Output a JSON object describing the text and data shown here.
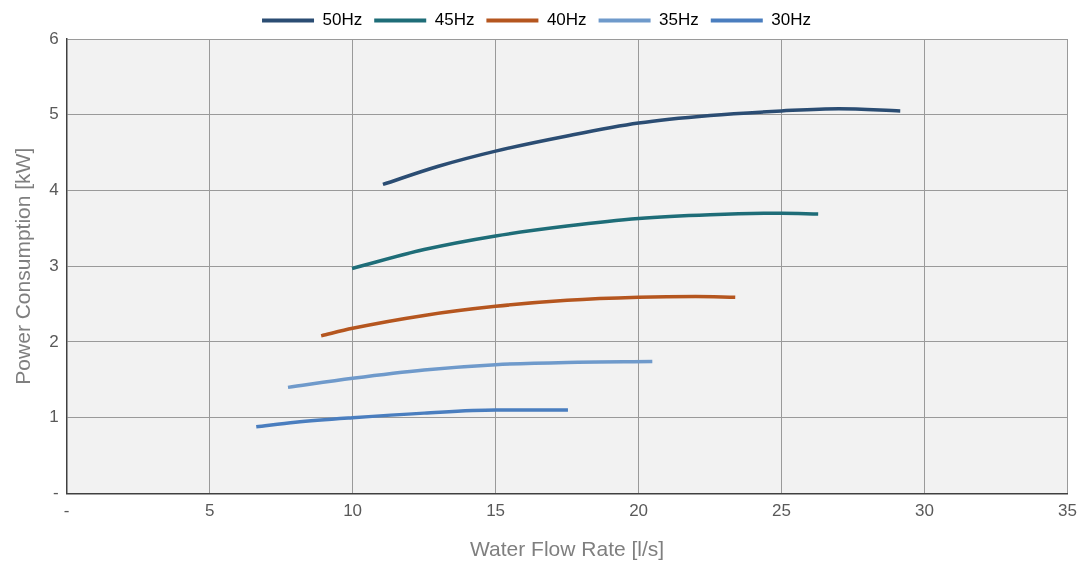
{
  "chart_data": {
    "type": "line",
    "xlabel": "Water Flow Rate [l/s]",
    "ylabel": "Power Consumption [kW]",
    "xlim": [
      0,
      35
    ],
    "ylim": [
      0,
      6
    ],
    "xticks": [
      {
        "value": 0,
        "label": "-"
      },
      5,
      10,
      15,
      20,
      25,
      30,
      35
    ],
    "yticks": [
      {
        "value": 0,
        "label": "-"
      },
      1,
      2,
      3,
      4,
      5,
      6
    ],
    "grid": true,
    "legend": "top",
    "marker": "none",
    "line_style": "solid",
    "series": [
      {
        "name": "50Hz",
        "color": "#2b4d73",
        "x": [
          11.06,
          13,
          15,
          17.5,
          20,
          22.5,
          25,
          27,
          29.15
        ],
        "values": [
          4.08,
          4.32,
          4.52,
          4.72,
          4.89,
          4.99,
          5.05,
          5.08,
          5.05
        ]
      },
      {
        "name": "45Hz",
        "color": "#1e6d78",
        "x": [
          9.98,
          12.5,
          15,
          17.5,
          20,
          22.5,
          25,
          26.28
        ],
        "values": [
          2.97,
          3.22,
          3.4,
          3.53,
          3.63,
          3.68,
          3.7,
          3.69
        ]
      },
      {
        "name": "40Hz",
        "color": "#b5561f",
        "x": [
          8.9,
          10,
          12.5,
          15,
          17.5,
          20,
          22,
          23.38
        ],
        "values": [
          2.08,
          2.18,
          2.35,
          2.47,
          2.55,
          2.59,
          2.6,
          2.59
        ]
      },
      {
        "name": "35Hz",
        "color": "#6f9acb",
        "x": [
          7.74,
          10,
          12.5,
          15,
          17.5,
          20.48
        ],
        "values": [
          1.4,
          1.52,
          1.63,
          1.7,
          1.73,
          1.74
        ]
      },
      {
        "name": "30Hz",
        "color": "#4a7ebf",
        "x": [
          6.63,
          8,
          10,
          12.5,
          15,
          17.53
        ],
        "values": [
          0.88,
          0.94,
          1.0,
          1.06,
          1.1,
          1.1
        ]
      }
    ]
  }
}
